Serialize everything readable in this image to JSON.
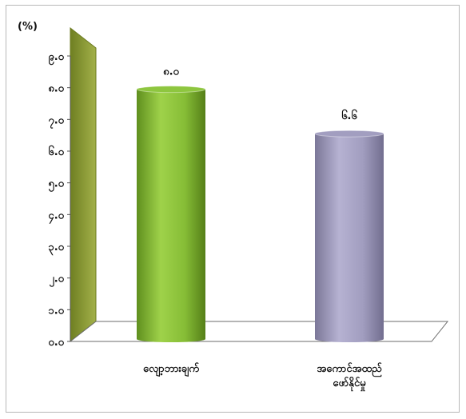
{
  "chart_data": {
    "type": "bar",
    "unit_label": "(%)",
    "y_tick_labels": [
      "၀.၀",
      "၁.၀",
      "၂.၀",
      "၃.၀",
      "၄.၀",
      "၅.၀",
      "၆.၀",
      "၇.၀",
      "၈.၀",
      "၉.၀"
    ],
    "ylim": [
      0,
      9
    ],
    "categories": [
      [
        "လျော့ဘားချက်"
      ],
      [
        "အကောင်အထည်",
        "ဖော်နိုင်မှု"
      ]
    ],
    "values": [
      8.0,
      6.6
    ],
    "value_labels": [
      "၈.၀",
      "၆.၆"
    ],
    "grid": false,
    "colors": {
      "bar1": "#8ec63f",
      "bar2": "#a29ec0",
      "wall": "#8a9a32",
      "floor": "#ffffff",
      "axis": "#555555"
    }
  }
}
